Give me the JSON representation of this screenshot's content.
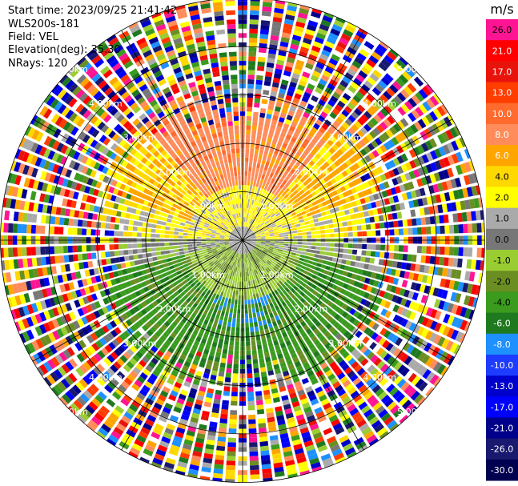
{
  "header": {
    "start_time": "Start time: 2023/09/25 21:41:42",
    "instrument": "WLS200s-181",
    "field": "Field: VEL",
    "elevation": "Elevation(deg): 35.30",
    "nrays": "NRays: 120"
  },
  "chart_data": {
    "type": "ppi",
    "field": "VEL",
    "units": "m/s",
    "nrays": 120,
    "elevation_deg": 35.3,
    "range_rings_km": [
      1.0,
      2.0,
      3.0,
      4.0,
      5.0
    ],
    "ring_labels": [
      "1.00km",
      "2.00km",
      "3.00km",
      "4.00km",
      "5.00km"
    ],
    "max_range_km": 5.0,
    "colorbar": {
      "unit_label": "m/s",
      "ticks": [
        "26.0",
        "21.0",
        "17.0",
        "13.0",
        "10.0",
        "8.0",
        "6.0",
        "4.0",
        "2.0",
        "1.0",
        "0.0",
        "-1.0",
        "-2.0",
        "-4.0",
        "-6.0",
        "-8.0",
        "-10.0",
        "-13.0",
        "-17.0",
        "-21.0",
        "-26.0",
        "-30.0"
      ],
      "colors": [
        "#ff1493",
        "#ff0000",
        "#e8140c",
        "#ff3d00",
        "#ff6a2e",
        "#ff8c5a",
        "#ffa500",
        "#ffd800",
        "#ffff00",
        "#aaaaaa",
        "#777777",
        "#9acd32",
        "#6b8e23",
        "#3a9b1e",
        "#1f7a1f",
        "#1e90ff",
        "#1e3cff",
        "#0000cd",
        "#0000ff",
        "#00008b",
        "#191970",
        "#000050"
      ],
      "text_colors": [
        "#000",
        "#fff",
        "#fff",
        "#fff",
        "#fff",
        "#fff",
        "#fff",
        "#000",
        "#000",
        "#000",
        "#000",
        "#000",
        "#000",
        "#000",
        "#fff",
        "#fff",
        "#fff",
        "#fff",
        "#fff",
        "#fff",
        "#fff",
        "#fff"
      ]
    },
    "pattern": {
      "near_range_north": "positive (2 to 8 m/s)",
      "near_range_south": "negative (-2 to -8 m/s)",
      "near_range_east_west": "near zero (-1 to 1 m/s)",
      "outer_range": "noise beyond ~2.5-3.0 km"
    }
  }
}
